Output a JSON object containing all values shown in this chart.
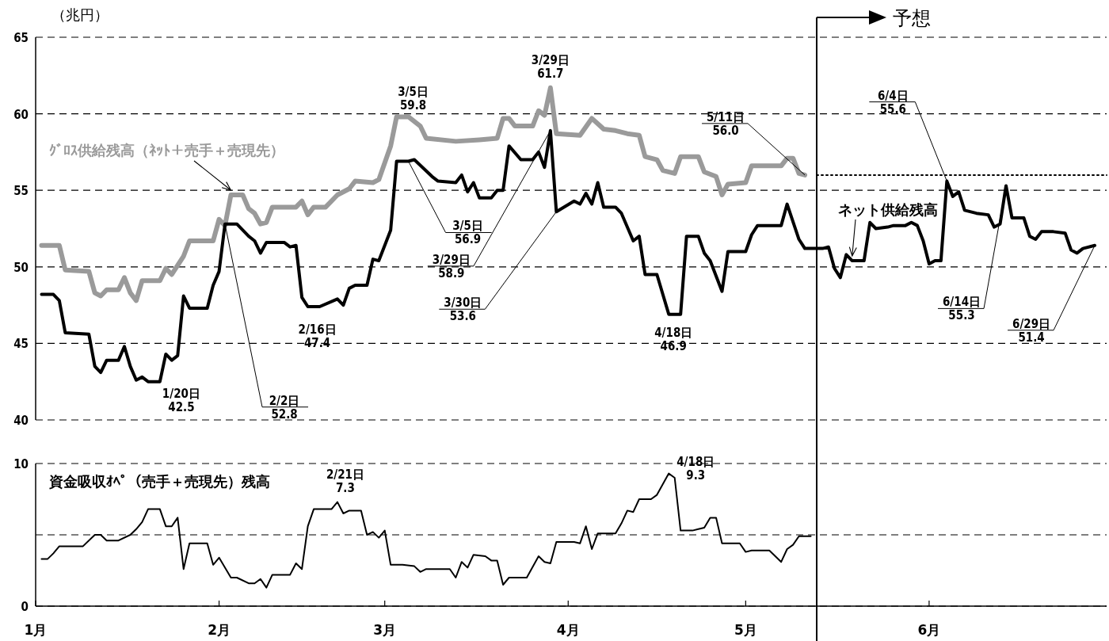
{
  "chart_data": [
    {
      "type": "line",
      "ylabel": "（兆円）",
      "xlim": [
        "--01-01",
        "--07-01"
      ],
      "ylim": [
        40,
        65
      ],
      "yticks": [
        40,
        45,
        50,
        55,
        60,
        65
      ],
      "grid": "y",
      "tick_labels": "y",
      "legend": false,
      "series": [
        {
          "name": "ｸﾞﾛｽ供給残高（ﾈｯﾄ＋売手＋売現先）",
          "color": "#9a9a9a",
          "x": [
            "--01-02",
            "--01-05",
            "--01-06",
            "--01-10",
            "--01-11",
            "--01-12",
            "--01-13",
            "--01-15",
            "--01-16",
            "--01-17",
            "--01-18",
            "--01-19",
            "--01-22",
            "--01-23",
            "--01-24",
            "--01-26",
            "--01-27",
            "--01-31",
            "--02-01",
            "--02-02",
            "--02-03",
            "--02-05",
            "--02-06",
            "--02-07",
            "--02-08",
            "--02-09",
            "--02-10",
            "--02-14",
            "--02-15",
            "--02-16",
            "--02-17",
            "--02-19",
            "--02-21",
            "--02-23",
            "--02-24",
            "--02-27",
            "--02-28",
            "--03-02",
            "--03-03",
            "--03-05",
            "--03-07",
            "--03-08",
            "--03-13",
            "--03-17",
            "--03-20",
            "--03-21",
            "--03-22",
            "--03-23",
            "--03-26",
            "--03-27",
            "--03-28",
            "--03-29",
            "--03-30",
            "--04-03",
            "--04-05",
            "--04-07",
            "--04-09",
            "--04-11",
            "--04-13",
            "--04-14",
            "--04-16",
            "--04-17",
            "--04-19",
            "--04-20",
            "--04-23",
            "--04-24",
            "--04-26",
            "--04-27",
            "--04-28",
            "--05-01",
            "--05-02",
            "--05-07",
            "--05-08",
            "--05-09",
            "--05-10",
            "--05-11"
          ],
          "values": [
            51.4,
            51.4,
            49.8,
            49.7,
            48.3,
            48.1,
            48.5,
            48.5,
            49.3,
            48.3,
            47.8,
            49.1,
            49.1,
            49.9,
            49.5,
            50.7,
            51.7,
            51.7,
            53.1,
            52.7,
            54.7,
            54.7,
            53.8,
            53.5,
            52.8,
            52.9,
            53.9,
            53.9,
            54.3,
            53.4,
            53.9,
            53.9,
            54.7,
            55.1,
            55.6,
            55.5,
            55.7,
            57.9,
            59.8,
            59.8,
            59.2,
            58.4,
            58.2,
            58.3,
            58.4,
            59.7,
            59.7,
            59.2,
            59.2,
            60.2,
            59.9,
            61.7,
            58.7,
            58.6,
            59.7,
            59.0,
            58.9,
            58.7,
            58.6,
            57.2,
            57.0,
            56.3,
            56.1,
            57.2,
            57.2,
            56.2,
            55.9,
            54.7,
            55.4,
            55.5,
            56.6,
            56.6,
            57.1,
            57.1,
            56.1,
            56.0
          ]
        },
        {
          "name": "ネット供給残高",
          "color": "#000000",
          "x": [
            "--01-02",
            "--01-04",
            "--01-05",
            "--01-06",
            "--01-10",
            "--01-11",
            "--01-12",
            "--01-13",
            "--01-15",
            "--01-16",
            "--01-17",
            "--01-18",
            "--01-19",
            "--01-20",
            "--01-22",
            "--01-23",
            "--01-24",
            "--01-25",
            "--01-26",
            "--01-27",
            "--01-30",
            "--01-31",
            "--02-01",
            "--02-02",
            "--02-04",
            "--02-06",
            "--02-07",
            "--02-08",
            "--02-09",
            "--02-12",
            "--02-13",
            "--02-14",
            "--02-15",
            "--02-16",
            "--02-18",
            "--02-21",
            "--02-22",
            "--02-23",
            "--02-24",
            "--02-26",
            "--02-27",
            "--02-28",
            "--03-02",
            "--03-03",
            "--03-05",
            "--03-06",
            "--03-09",
            "--03-10",
            "--03-13",
            "--03-14",
            "--03-15",
            "--03-16",
            "--03-17",
            "--03-19",
            "--03-20",
            "--03-21",
            "--03-22",
            "--03-24",
            "--03-26",
            "--03-27",
            "--03-28",
            "--03-29",
            "--03-30",
            "--04-02",
            "--04-03",
            "--04-04",
            "--04-05",
            "--04-06",
            "--04-07",
            "--04-09",
            "--04-10",
            "--04-12",
            "--04-13",
            "--04-14",
            "--04-16",
            "--04-18",
            "--04-20",
            "--04-21",
            "--04-23",
            "--04-24",
            "--04-25",
            "--04-27",
            "--04-28",
            "--05-01",
            "--05-02",
            "--05-03",
            "--05-07",
            "--05-08",
            "--05-10",
            "--05-11",
            "--05-14",
            "--05-15",
            "--05-16",
            "--05-17",
            "--05-18",
            "--05-19",
            "--05-21",
            "--05-22",
            "--05-23",
            "--05-25",
            "--05-26",
            "--05-28",
            "--05-29",
            "--05-30",
            "--05-31",
            "--06-01",
            "--06-02",
            "--06-03",
            "--06-04",
            "--06-05",
            "--06-06",
            "--06-07",
            "--06-09",
            "--06-11",
            "--06-12",
            "--06-13",
            "--06-14",
            "--06-15",
            "--06-17",
            "--06-18",
            "--06-19",
            "--06-20",
            "--06-22",
            "--06-24",
            "--06-25",
            "--06-26",
            "--06-27",
            "--06-29"
          ],
          "values": [
            48.2,
            48.2,
            47.8,
            45.7,
            45.6,
            43.5,
            43.1,
            43.9,
            43.9,
            44.8,
            43.5,
            42.6,
            42.8,
            42.5,
            42.5,
            44.3,
            43.9,
            44.2,
            48.1,
            47.3,
            47.3,
            48.8,
            49.7,
            52.8,
            52.8,
            52.0,
            51.7,
            50.9,
            51.6,
            51.6,
            51.3,
            51.4,
            48.0,
            47.4,
            47.4,
            47.9,
            47.5,
            48.6,
            48.8,
            48.8,
            50.5,
            50.4,
            52.4,
            56.9,
            56.9,
            57.0,
            55.9,
            55.6,
            55.5,
            56.0,
            54.9,
            55.5,
            54.5,
            54.5,
            55.0,
            55.0,
            57.9,
            57.0,
            57.0,
            57.5,
            56.5,
            58.9,
            53.6,
            54.3,
            54.1,
            54.8,
            54.1,
            55.5,
            53.9,
            53.9,
            53.5,
            51.7,
            52.0,
            49.5,
            49.5,
            46.9,
            46.9,
            52.0,
            52.0,
            50.9,
            50.4,
            48.4,
            51.0,
            51.0,
            52.1,
            52.7,
            52.7,
            54.1,
            51.8,
            51.2,
            51.2,
            51.3,
            49.9,
            49.3,
            50.8,
            50.4,
            50.4,
            52.9,
            52.5,
            52.6,
            52.7,
            52.7,
            52.9,
            52.7,
            51.7,
            50.2,
            50.4,
            50.4,
            55.6,
            54.6,
            54.9,
            53.7,
            53.5,
            53.4,
            52.6,
            52.8,
            55.3,
            53.2,
            53.2,
            52.0,
            51.8,
            52.3,
            52.3,
            52.2,
            51.1,
            50.9,
            51.2,
            51.4
          ]
        },
        {
          "color": "#000000",
          "line_style": "dotted",
          "x": [
            "--05-13",
            "--07-01"
          ],
          "values": [
            56.0,
            56.0
          ]
        }
      ],
      "ref_lines": [
        {
          "axis": "x",
          "value": "--05-13",
          "label": "予想"
        }
      ],
      "annotations": [
        {
          "text": "1/20日\n42.5",
          "x": "--01-20",
          "y": 42.5
        },
        {
          "text": "2/2日\n52.8",
          "x": "--02-02",
          "y": 52.8
        },
        {
          "text": "2/16日\n47.4",
          "x": "--02-16",
          "y": 47.4
        },
        {
          "text": "3/5日\n59.8",
          "x": "--03-05",
          "y": 59.8
        },
        {
          "text": "3/5日\n56.9",
          "x": "--03-05",
          "y": 56.9
        },
        {
          "text": "3/29日\n61.7",
          "x": "--03-29",
          "y": 61.7
        },
        {
          "text": "3/29日\n58.9",
          "x": "--03-29",
          "y": 58.9
        },
        {
          "text": "3/30日\n53.6",
          "x": "--03-30",
          "y": 53.6
        },
        {
          "text": "4/18日\n46.9",
          "x": "--04-18",
          "y": 46.9
        },
        {
          "text": "5/11日\n56.0",
          "x": "--05-11",
          "y": 56.0
        },
        {
          "text": "6/4日\n55.6",
          "x": "--06-04",
          "y": 55.6
        },
        {
          "text": "6/14日\n55.3",
          "x": "--06-14",
          "y": 55.3
        },
        {
          "text": "6/29日\n51.4",
          "x": "--06-29",
          "y": 51.4
        }
      ]
    },
    {
      "type": "line",
      "xlim": [
        "--01-01",
        "--07-01"
      ],
      "ylim": [
        0,
        10
      ],
      "yticks": [
        0,
        {
          "value": 5,
          "label": null
        },
        10
      ],
      "grid": "y",
      "legend": false,
      "xticks": [
        {
          "value": "--01-01",
          "label": "1月"
        },
        {
          "value": "--02-01",
          "label": "2月"
        },
        {
          "value": "--03-01",
          "label": "3月"
        },
        {
          "value": "--04-01",
          "label": "4月"
        },
        {
          "value": "--05-01",
          "label": "5月"
        },
        {
          "value": "--06-01",
          "label": "6月"
        }
      ],
      "series": [
        {
          "name": "資金吸収ｵﾍﾟ（売手＋売現先）残高",
          "color": "#000000",
          "x": [
            "--01-02",
            "--01-03",
            "--01-04",
            "--01-05",
            "--01-09",
            "--01-11",
            "--01-12",
            "--01-13",
            "--01-15",
            "--01-17",
            "--01-18",
            "--01-19",
            "--01-20",
            "--01-22",
            "--01-23",
            "--01-24",
            "--01-25",
            "--01-26",
            "--01-27",
            "--01-30",
            "--01-31",
            "--02-01",
            "--02-03",
            "--02-04",
            "--02-06",
            "--02-07",
            "--02-08",
            "--02-09",
            "--02-10",
            "--02-13",
            "--02-14",
            "--02-15",
            "--02-16",
            "--02-17",
            "--02-20",
            "--02-21",
            "--02-22",
            "--02-23",
            "--02-25",
            "--02-26",
            "--02-27",
            "--02-28",
            "--03-01",
            "--03-02",
            "--03-04",
            "--03-06",
            "--03-07",
            "--03-08",
            "--03-12",
            "--03-13",
            "--03-14",
            "--03-15",
            "--03-16",
            "--03-18",
            "--03-19",
            "--03-20",
            "--03-21",
            "--03-22",
            "--03-23",
            "--03-25",
            "--03-27",
            "--03-28",
            "--03-29",
            "--03-30",
            "--04-02",
            "--04-03",
            "--04-04",
            "--04-05",
            "--04-06",
            "--04-09",
            "--04-10",
            "--04-11",
            "--04-12",
            "--04-13",
            "--04-15",
            "--04-16",
            "--04-18",
            "--04-19",
            "--04-20",
            "--04-22",
            "--04-23",
            "--04-24",
            "--04-25",
            "--04-26",
            "--04-27",
            "--04-30",
            "--05-01",
            "--05-02",
            "--05-05",
            "--05-07",
            "--05-08",
            "--05-09",
            "--05-10",
            "--05-12"
          ],
          "values": [
            3.3,
            3.3,
            3.7,
            4.2,
            4.2,
            5.0,
            5.0,
            4.6,
            4.6,
            5.0,
            5.4,
            5.9,
            6.8,
            6.8,
            5.6,
            5.6,
            6.2,
            2.6,
            4.4,
            4.4,
            2.9,
            3.4,
            2.0,
            2.0,
            1.6,
            1.6,
            1.9,
            1.3,
            2.2,
            2.2,
            3.0,
            2.6,
            5.6,
            6.8,
            6.8,
            7.3,
            6.5,
            6.7,
            6.7,
            5.0,
            5.2,
            4.8,
            5.3,
            2.9,
            2.9,
            2.8,
            2.4,
            2.6,
            2.6,
            2.0,
            3.1,
            2.7,
            3.6,
            3.5,
            3.2,
            3.2,
            1.5,
            2.0,
            2.0,
            2.0,
            3.5,
            3.1,
            3.0,
            4.5,
            4.5,
            4.4,
            5.6,
            4.0,
            5.1,
            5.1,
            5.8,
            6.7,
            6.6,
            7.5,
            7.5,
            7.8,
            9.3,
            9.0,
            5.3,
            5.3,
            5.4,
            5.5,
            6.2,
            6.2,
            4.4,
            4.4,
            3.8,
            3.9,
            3.9,
            3.1,
            4.0,
            4.3,
            4.9,
            4.9
          ]
        }
      ],
      "ref_lines": [
        {
          "axis": "x",
          "value": "--05-13"
        }
      ],
      "annotations": [
        {
          "text": "2/21日\n7.3",
          "x": "--02-21",
          "y": 7.3
        },
        {
          "text": "4/18日\n9.3",
          "x": "--04-18",
          "y": 9.3
        }
      ]
    }
  ]
}
